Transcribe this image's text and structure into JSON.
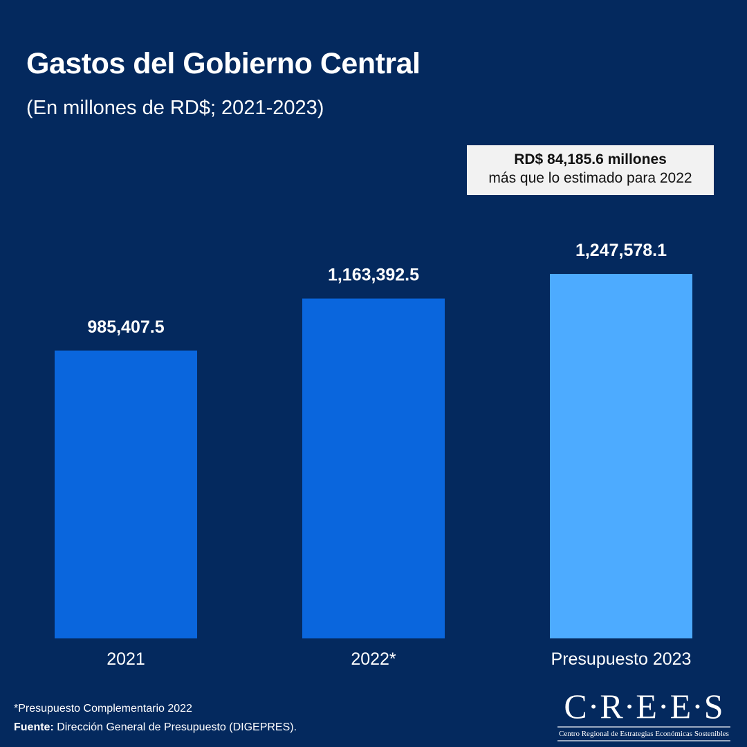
{
  "chart_data": {
    "type": "bar",
    "title": "Gastos del Gobierno Central",
    "subtitle": "(En millones de RD$; 2021-2023)",
    "categories": [
      "2021",
      "2022*",
      "Presupuesto 2023"
    ],
    "values": [
      985407.5,
      1163392.5,
      1247578.1
    ],
    "data_labels": [
      "985,407.5",
      "1,163,392.5",
      "1,247,578.1"
    ],
    "colors": [
      "#0a66dd",
      "#0a66dd",
      "#4dabff"
    ],
    "ylim": [
      0,
      1250000
    ],
    "grid": false,
    "annotation": {
      "line1": "RD$ 84,185.6 millones",
      "line2": "más que lo estimado para 2022"
    }
  },
  "footer": {
    "note": "*Presupuesto Complementario 2022",
    "source_label": "Fuente:",
    "source_text": " Dirección General de Presupuesto (DIGEPRES)."
  },
  "logo": {
    "name": "C·R·E·E·S",
    "tagline": "Centro Regional de Estrategias Económicas Sostenibles"
  },
  "colors": {
    "background": "#04295e"
  }
}
